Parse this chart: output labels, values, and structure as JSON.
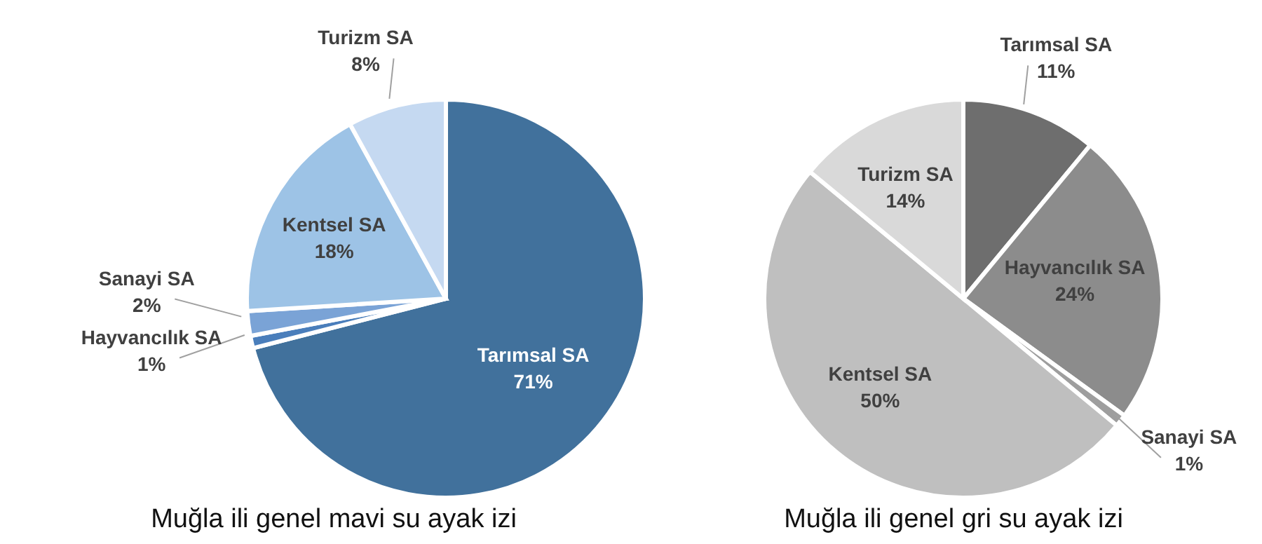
{
  "chart_data": [
    {
      "type": "pie",
      "title": "Muğla ili genel mavi su ayak izi",
      "categories": [
        "Tarımsal SA",
        "Hayvancılık SA",
        "Sanayi SA",
        "Kentsel SA",
        "Turizm SA"
      ],
      "values": [
        71,
        1,
        2,
        18,
        8
      ],
      "colors": [
        "#41719c",
        "#4a7ebb",
        "#7aa3d6",
        "#9dc3e6",
        "#c5d9f1"
      ],
      "value_labels": [
        "71%",
        "1%",
        "2%",
        "18%",
        "8%"
      ]
    },
    {
      "type": "pie",
      "title": "Muğla ili genel gri su ayak izi",
      "categories": [
        "Tarımsal SA",
        "Hayvancılık SA",
        "Sanayi SA",
        "Kentsel SA",
        "Turizm SA"
      ],
      "values": [
        11,
        24,
        1,
        50,
        14
      ],
      "colors": [
        "#6e6e6e",
        "#8c8c8c",
        "#9e9e9e",
        "#bfbfbf",
        "#d9d9d9"
      ],
      "value_labels": [
        "11%",
        "24%",
        "1%",
        "50%",
        "14%"
      ]
    }
  ]
}
